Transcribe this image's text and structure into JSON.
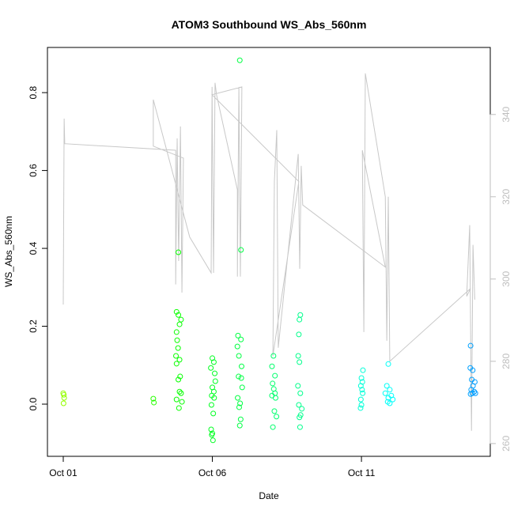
{
  "chart_data": {
    "type": "scatter",
    "title": "ATOM3 Southbound WS_Abs_560nm",
    "xlabel": "Date",
    "ylabel": "WS_Abs_560nm",
    "xlim": [
      -0.53,
      14.32
    ],
    "ylim": [
      -0.134,
      0.916
    ],
    "y2lim": [
      256.9,
      356.3
    ],
    "x_ticks": [
      {
        "day": 0,
        "label": "Oct 01"
      },
      {
        "day": 5,
        "label": "Oct 06"
      },
      {
        "day": 10,
        "label": "Oct 11"
      }
    ],
    "y_ticks": [
      "0.0",
      "0.2",
      "0.4",
      "0.6",
      "0.8"
    ],
    "y2_ticks": [
      "260",
      "280",
      "300",
      "320",
      "340"
    ],
    "colors": {
      "line": "#c8c8c8",
      "axis": "#000000",
      "axis2": "#bebebe"
    },
    "points": [
      [
        0.0,
        0.028
      ],
      [
        0.02,
        0.024
      ],
      [
        0.03,
        0.016
      ],
      [
        0.01,
        0.002
      ],
      [
        3.02,
        0.014
      ],
      [
        3.04,
        0.004
      ],
      [
        3.86,
        0.39
      ],
      [
        3.8,
        0.237
      ],
      [
        3.86,
        0.229
      ],
      [
        3.95,
        0.217
      ],
      [
        3.9,
        0.205
      ],
      [
        3.8,
        0.185
      ],
      [
        3.82,
        0.164
      ],
      [
        3.85,
        0.144
      ],
      [
        3.78,
        0.124
      ],
      [
        3.9,
        0.114
      ],
      [
        3.8,
        0.104
      ],
      [
        3.92,
        0.071
      ],
      [
        3.86,
        0.063
      ],
      [
        3.9,
        0.032
      ],
      [
        3.95,
        0.028
      ],
      [
        3.8,
        0.012
      ],
      [
        3.98,
        0.006
      ],
      [
        3.88,
        -0.01
      ],
      [
        5.0,
        0.118
      ],
      [
        5.05,
        0.108
      ],
      [
        4.95,
        0.093
      ],
      [
        5.08,
        0.079
      ],
      [
        5.1,
        0.059
      ],
      [
        5.0,
        0.043
      ],
      [
        5.05,
        0.032
      ],
      [
        4.98,
        0.022
      ],
      [
        5.06,
        0.016
      ],
      [
        4.97,
        -0.002
      ],
      [
        5.03,
        -0.024
      ],
      [
        4.96,
        -0.065
      ],
      [
        5.0,
        -0.075
      ],
      [
        4.98,
        -0.079
      ],
      [
        5.02,
        -0.093
      ],
      [
        5.92,
        0.883
      ],
      [
        5.96,
        0.396
      ],
      [
        5.86,
        0.176
      ],
      [
        5.96,
        0.166
      ],
      [
        5.84,
        0.148
      ],
      [
        5.89,
        0.124
      ],
      [
        5.98,
        0.097
      ],
      [
        5.88,
        0.071
      ],
      [
        5.97,
        0.067
      ],
      [
        6.0,
        0.043
      ],
      [
        5.85,
        0.016
      ],
      [
        5.93,
        0.002
      ],
      [
        5.9,
        -0.008
      ],
      [
        5.95,
        -0.039
      ],
      [
        5.92,
        -0.055
      ],
      [
        7.05,
        0.124
      ],
      [
        7.0,
        0.097
      ],
      [
        7.1,
        0.073
      ],
      [
        7.02,
        0.053
      ],
      [
        7.06,
        0.039
      ],
      [
        7.1,
        0.028
      ],
      [
        7.0,
        0.022
      ],
      [
        7.12,
        0.016
      ],
      [
        7.08,
        -0.018
      ],
      [
        7.15,
        -0.032
      ],
      [
        7.03,
        -0.059
      ],
      [
        7.95,
        0.229
      ],
      [
        7.92,
        0.217
      ],
      [
        7.9,
        0.179
      ],
      [
        7.88,
        0.124
      ],
      [
        7.92,
        0.108
      ],
      [
        7.87,
        0.047
      ],
      [
        7.95,
        0.028
      ],
      [
        7.9,
        -0.002
      ],
      [
        8.0,
        -0.012
      ],
      [
        7.96,
        -0.028
      ],
      [
        7.92,
        -0.034
      ],
      [
        7.94,
        -0.059
      ],
      [
        10.05,
        0.087
      ],
      [
        10.0,
        0.067
      ],
      [
        10.03,
        0.057
      ],
      [
        9.98,
        0.047
      ],
      [
        10.02,
        0.037
      ],
      [
        10.04,
        0.028
      ],
      [
        9.98,
        0.012
      ],
      [
        10.0,
        -0.002
      ],
      [
        9.97,
        -0.01
      ],
      [
        10.9,
        0.103
      ],
      [
        10.85,
        0.047
      ],
      [
        10.95,
        0.037
      ],
      [
        10.8,
        0.028
      ],
      [
        11.0,
        0.022
      ],
      [
        10.9,
        0.016
      ],
      [
        11.05,
        0.012
      ],
      [
        10.88,
        0.006
      ],
      [
        10.95,
        0.002
      ],
      [
        13.66,
        0.15
      ],
      [
        13.65,
        0.093
      ],
      [
        13.73,
        0.087
      ],
      [
        13.7,
        0.063
      ],
      [
        13.8,
        0.057
      ],
      [
        13.74,
        0.047
      ],
      [
        13.68,
        0.037
      ],
      [
        13.78,
        0.032
      ],
      [
        13.72,
        0.028
      ],
      [
        13.82,
        0.028
      ],
      [
        13.66,
        0.026
      ]
    ],
    "line_series_y2": [
      [
        0,
        293.8
      ],
      [
        0.03,
        339.0
      ],
      [
        0.05,
        332.9
      ],
      [
        3.77,
        331.3
      ],
      [
        3.77,
        298.7
      ],
      [
        3.82,
        334.2
      ],
      [
        3.87,
        304.4
      ],
      [
        3.93,
        337.1
      ],
      [
        3.98,
        296.7
      ],
      [
        4.03,
        329.4
      ],
      [
        3.02,
        332.3
      ],
      [
        3.02,
        343.6
      ],
      [
        4.24,
        310.2
      ],
      [
        4.96,
        301.5
      ],
      [
        4.99,
        346.7
      ],
      [
        5.04,
        301.5
      ],
      [
        5.09,
        347.7
      ],
      [
        5.14,
        344.8
      ],
      [
        5.84,
        321.7
      ],
      [
        5.84,
        300.6
      ],
      [
        5.89,
        346.7
      ],
      [
        5.94,
        300.6
      ],
      [
        5.99,
        346.7
      ],
      [
        4.99,
        344.8
      ],
      [
        7.9,
        323.7
      ],
      [
        7.03,
        281.3
      ],
      [
        7.08,
        323.7
      ],
      [
        7.16,
        336.2
      ],
      [
        7.21,
        283.3
      ],
      [
        7.88,
        330.4
      ],
      [
        7.93,
        302.5
      ],
      [
        7.98,
        327.5
      ],
      [
        8.03,
        318.0
      ],
      [
        10.8,
        302.9
      ],
      [
        10.03,
        331.3
      ],
      [
        10.08,
        287.1
      ],
      [
        10.13,
        350.0
      ],
      [
        10.8,
        320.0
      ],
      [
        10.85,
        285.0
      ],
      [
        10.9,
        320.0
      ],
      [
        10.95,
        280.0
      ],
      [
        13.66,
        297.7
      ],
      [
        13.53,
        295.8
      ],
      [
        13.63,
        313.1
      ],
      [
        13.69,
        263.1
      ],
      [
        13.74,
        308.3
      ],
      [
        13.8,
        295.0
      ]
    ]
  }
}
